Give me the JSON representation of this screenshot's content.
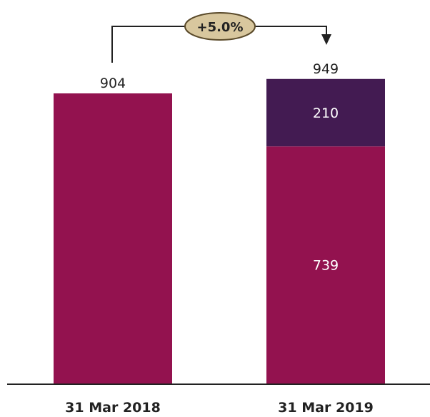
{
  "chart_data": {
    "type": "bar",
    "stacked": true,
    "categories": [
      "31 Mar 2018",
      "31 Mar 2019"
    ],
    "series": [
      {
        "values": [
          904,
          739
        ],
        "color": "#93124f",
        "show_labels": [
          false,
          true
        ]
      },
      {
        "values": [
          0,
          210
        ],
        "color": "#431b52",
        "show_labels": [
          false,
          true
        ]
      }
    ],
    "totals": [
      "904",
      "949"
    ],
    "segment_labels": {
      "lower": "739",
      "upper": "210"
    },
    "change_badge": {
      "text": "+5.0%",
      "fill": "#d8c79e",
      "stroke": "#5a4a2a"
    },
    "ylim": [
      0,
      1000
    ],
    "grid": false,
    "title": "",
    "xlabel": "",
    "ylabel": ""
  }
}
